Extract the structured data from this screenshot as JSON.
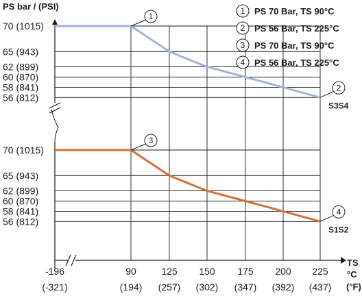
{
  "chart_data": {
    "type": "line",
    "ylabel": "PS bar / (PSI)",
    "xlabel_lines": [
      "TS",
      "°C",
      "(°F)"
    ],
    "x_ticks": [
      {
        "c": "-196",
        "f": "(-321)"
      },
      {
        "c": "90",
        "f": "(194)"
      },
      {
        "c": "125",
        "f": "(257)"
      },
      {
        "c": "150",
        "f": "(302)"
      },
      {
        "c": "175",
        "f": "(347)"
      },
      {
        "c": "200",
        "f": "(392)"
      },
      {
        "c": "225",
        "f": "(437)"
      }
    ],
    "y_ticks": [
      "70 (1015)",
      "65 (943)",
      "62 (899)",
      "60 (870)",
      "58 (841)",
      "56 (812)"
    ],
    "y_tick_values": [
      70,
      65,
      62,
      60,
      58,
      56
    ],
    "panels": [
      {
        "name": "S3S4",
        "color": "#9fb3dc",
        "points": [
          {
            "x": "-196",
            "y": 70
          },
          {
            "x": "90",
            "y": 70
          },
          {
            "x": "125",
            "y": 65
          },
          {
            "x": "150",
            "y": 62
          },
          {
            "x": "175",
            "y": 60
          },
          {
            "x": "200",
            "y": 58
          },
          {
            "x": "225",
            "y": 56
          }
        ],
        "markers": [
          {
            "num": "1",
            "x": "90",
            "y": 70
          },
          {
            "num": "2",
            "x": "225",
            "y": 56
          }
        ]
      },
      {
        "name": "S1S2",
        "color": "#d0703a",
        "points": [
          {
            "x": "-196",
            "y": 70
          },
          {
            "x": "90",
            "y": 70
          },
          {
            "x": "125",
            "y": 65
          },
          {
            "x": "150",
            "y": 62
          },
          {
            "x": "175",
            "y": 60
          },
          {
            "x": "200",
            "y": 58
          },
          {
            "x": "225",
            "y": 56
          }
        ],
        "markers": [
          {
            "num": "3",
            "x": "90",
            "y": 70
          },
          {
            "num": "4",
            "x": "225",
            "y": 56
          }
        ]
      }
    ],
    "legend": [
      {
        "num": "1",
        "text": "PS 70 Bar, TS 90°C"
      },
      {
        "num": "2",
        "text": "PS 56 Bar, TS 225°C"
      },
      {
        "num": "3",
        "text": "PS 70 Bar, TS 90°C"
      },
      {
        "num": "4",
        "text": "PS 56 Bar, TS 225°C"
      }
    ],
    "legend_position": "top-right",
    "grid": true
  }
}
